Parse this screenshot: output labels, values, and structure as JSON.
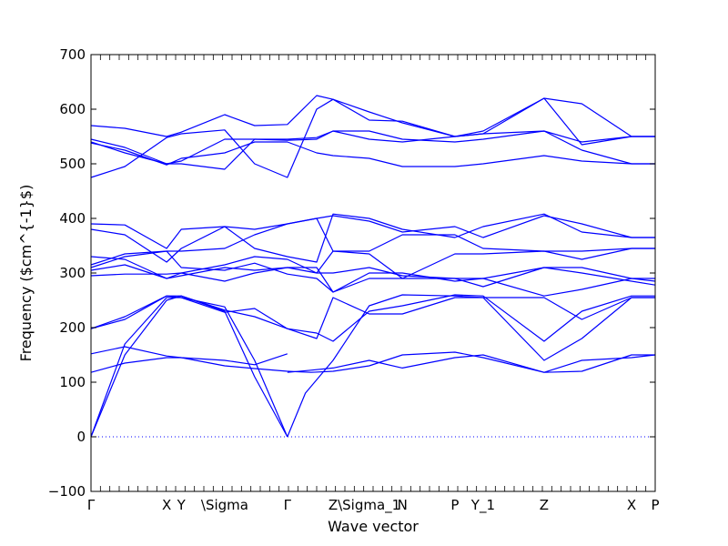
{
  "chart_data": {
    "type": "line",
    "title": "",
    "xlabel": "Wave vector",
    "ylabel": "Frequency ($cm^{-1}$)",
    "ylim": [
      -100,
      700
    ],
    "xlim": [
      0,
      1
    ],
    "yticks": [
      -100,
      0,
      100,
      200,
      300,
      400,
      500,
      600,
      700
    ],
    "grid": false,
    "line_color": "#0000ff",
    "zero_line_color": "#0000ff",
    "xticks": [
      {
        "label": "Γ",
        "pos": 0.0
      },
      {
        "label": "X",
        "pos": 0.134
      },
      {
        "label": "Y",
        "pos": 0.16
      },
      {
        "label": "\\Sigma",
        "pos": 0.237
      },
      {
        "label": "Γ",
        "pos": 0.348
      },
      {
        "label": "Z",
        "pos": 0.429
      },
      {
        "label": "\\Sigma_1",
        "pos": 0.493
      },
      {
        "label": "N",
        "pos": 0.552
      },
      {
        "label": "P",
        "pos": 0.645
      },
      {
        "label": "Y_1",
        "pos": 0.695
      },
      {
        "label": "Z",
        "pos": 0.803
      },
      {
        "label": "X",
        "pos": 0.958
      },
      {
        "label": "P",
        "pos": 1.0
      }
    ],
    "series": [
      {
        "x": [
          0,
          0.06,
          0.134,
          0.16,
          0.237,
          0.29,
          0.348
        ],
        "y": [
          0,
          150,
          250,
          258,
          230,
          110,
          0
        ]
      },
      {
        "x": [
          0,
          0.06,
          0.134,
          0.16,
          0.237,
          0.29,
          0.348
        ],
        "y": [
          0,
          170,
          255,
          255,
          238,
          140,
          0
        ]
      },
      {
        "x": [
          0.348,
          0.38,
          0.429,
          0.493,
          0.552,
          0.645,
          0.695,
          0.803,
          0.87,
          0.958,
          1.0
        ],
        "y": [
          0,
          80,
          140,
          240,
          260,
          258,
          255,
          140,
          180,
          255,
          255
        ]
      },
      {
        "x": [
          0,
          0.06,
          0.134,
          0.16,
          0.237,
          0.29,
          0.348
        ],
        "y": [
          118,
          135,
          145,
          145,
          130,
          125,
          120
        ]
      },
      {
        "x": [
          0,
          0.06,
          0.134,
          0.16,
          0.237,
          0.29,
          0.348
        ],
        "y": [
          152,
          165,
          148,
          145,
          140,
          132,
          152
        ]
      },
      {
        "x": [
          0.348,
          0.39,
          0.429,
          0.493,
          0.552,
          0.645,
          0.695,
          0.803,
          0.87,
          0.958,
          1.0
        ],
        "y": [
          120,
          118,
          120,
          130,
          150,
          155,
          145,
          118,
          120,
          150,
          150
        ]
      },
      {
        "x": [
          0.348,
          0.39,
          0.429,
          0.493,
          0.552,
          0.645,
          0.695,
          0.803,
          0.87,
          0.958,
          1.0
        ],
        "y": [
          118,
          122,
          126,
          140,
          126,
          145,
          150,
          118,
          140,
          145,
          150
        ]
      },
      {
        "x": [
          0,
          0.06,
          0.134,
          0.16,
          0.237,
          0.29,
          0.348,
          0.4,
          0.429,
          0.493,
          0.552,
          0.645,
          0.695,
          0.803,
          0.87,
          0.958,
          1.0
        ],
        "y": [
          198,
          215,
          258,
          258,
          232,
          220,
          198,
          190,
          175,
          230,
          240,
          260,
          258,
          175,
          230,
          258,
          258
        ]
      },
      {
        "x": [
          0,
          0.06,
          0.134,
          0.16,
          0.237,
          0.29,
          0.348,
          0.4,
          0.429,
          0.493,
          0.552,
          0.645,
          0.695,
          0.803,
          0.87,
          0.958,
          1.0
        ],
        "y": [
          198,
          220,
          258,
          255,
          228,
          235,
          198,
          180,
          255,
          225,
          225,
          255,
          255,
          255,
          215,
          255,
          255
        ]
      },
      {
        "x": [
          0,
          0.06,
          0.134,
          0.16,
          0.237,
          0.29,
          0.348,
          0.4,
          0.429,
          0.493,
          0.552,
          0.645,
          0.695,
          0.803,
          0.87,
          0.958,
          1.0
        ],
        "y": [
          295,
          298,
          298,
          300,
          285,
          300,
          310,
          310,
          265,
          300,
          300,
          285,
          290,
          258,
          270,
          290,
          285
        ]
      },
      {
        "x": [
          0,
          0.06,
          0.134,
          0.16,
          0.237,
          0.29,
          0.348,
          0.4,
          0.429,
          0.493,
          0.552,
          0.645,
          0.695,
          0.803,
          0.87,
          0.958,
          1.0
        ],
        "y": [
          305,
          315,
          290,
          295,
          310,
          305,
          310,
          300,
          300,
          310,
          295,
          290,
          275,
          310,
          300,
          285,
          278
        ]
      },
      {
        "x": [
          0,
          0.06,
          0.134,
          0.16,
          0.237,
          0.29,
          0.348,
          0.4,
          0.429,
          0.493,
          0.552,
          0.645,
          0.695,
          0.803,
          0.87,
          0.958,
          1.0
        ],
        "y": [
          310,
          330,
          340,
          310,
          305,
          318,
          298,
          290,
          265,
          290,
          290,
          290,
          290,
          310,
          310,
          290,
          290
        ]
      },
      {
        "x": [
          0,
          0.06,
          0.134,
          0.16,
          0.237,
          0.29,
          0.348,
          0.4,
          0.429,
          0.493,
          0.552,
          0.645,
          0.695,
          0.803,
          0.87,
          0.958,
          1.0
        ],
        "y": [
          330,
          325,
          290,
          300,
          315,
          330,
          325,
          300,
          340,
          340,
          370,
          370,
          345,
          340,
          340,
          345,
          345
        ]
      },
      {
        "x": [
          0,
          0.06,
          0.134,
          0.16,
          0.237,
          0.29,
          0.348,
          0.4,
          0.429,
          0.493,
          0.552,
          0.645,
          0.695,
          0.803,
          0.87,
          0.958,
          1.0
        ],
        "y": [
          315,
          335,
          340,
          340,
          345,
          370,
          390,
          400,
          340,
          335,
          290,
          335,
          335,
          340,
          325,
          345,
          345
        ]
      },
      {
        "x": [
          0,
          0.06,
          0.134,
          0.16,
          0.237,
          0.29,
          0.348,
          0.4,
          0.429,
          0.493,
          0.552,
          0.645,
          0.695,
          0.803,
          0.87,
          0.958,
          1.0
        ],
        "y": [
          380,
          370,
          320,
          345,
          385,
          380,
          390,
          400,
          405,
          395,
          375,
          385,
          365,
          405,
          390,
          365,
          365
        ]
      },
      {
        "x": [
          0,
          0.06,
          0.134,
          0.16,
          0.237,
          0.29,
          0.348,
          0.4,
          0.429,
          0.493,
          0.552,
          0.645,
          0.695,
          0.803,
          0.87,
          0.958,
          1.0
        ],
        "y": [
          390,
          388,
          345,
          380,
          385,
          345,
          330,
          320,
          408,
          400,
          380,
          365,
          385,
          408,
          375,
          365,
          365
        ]
      },
      {
        "x": [
          0,
          0.06,
          0.134,
          0.16,
          0.237,
          0.29,
          0.348,
          0.4,
          0.429,
          0.493,
          0.552,
          0.645,
          0.695,
          0.803,
          0.87,
          0.958,
          1.0
        ],
        "y": [
          475,
          495,
          548,
          555,
          562,
          500,
          475,
          600,
          618,
          595,
          575,
          550,
          555,
          620,
          535,
          550,
          550
        ]
      },
      {
        "x": [
          0,
          0.06,
          0.134,
          0.16,
          0.237,
          0.29,
          0.348,
          0.4,
          0.429,
          0.493,
          0.552,
          0.645,
          0.695,
          0.803,
          0.87,
          0.958,
          1.0
        ],
        "y": [
          538,
          525,
          498,
          510,
          520,
          540,
          540,
          520,
          515,
          510,
          495,
          495,
          500,
          515,
          505,
          500,
          500
        ]
      },
      {
        "x": [
          0,
          0.06,
          0.134,
          0.16,
          0.237,
          0.29,
          0.348,
          0.4,
          0.429,
          0.493,
          0.552,
          0.645,
          0.695,
          0.803,
          0.87,
          0.958,
          1.0
        ],
        "y": [
          545,
          530,
          500,
          500,
          490,
          545,
          545,
          548,
          560,
          560,
          545,
          540,
          545,
          560,
          525,
          500,
          500
        ]
      },
      {
        "x": [
          0,
          0.06,
          0.134,
          0.16,
          0.237,
          0.29,
          0.348,
          0.4,
          0.429,
          0.493,
          0.552,
          0.645,
          0.695,
          0.803,
          0.87,
          0.958,
          1.0
        ],
        "y": [
          540,
          520,
          500,
          505,
          545,
          545,
          543,
          545,
          560,
          545,
          540,
          550,
          555,
          560,
          540,
          550,
          550
        ]
      },
      {
        "x": [
          0,
          0.06,
          0.134,
          0.16,
          0.237,
          0.29,
          0.348,
          0.4,
          0.429,
          0.493,
          0.552,
          0.645,
          0.695,
          0.803,
          0.87,
          0.958,
          1.0
        ],
        "y": [
          570,
          565,
          550,
          558,
          590,
          570,
          572,
          625,
          618,
          580,
          578,
          550,
          560,
          620,
          610,
          550,
          550
        ]
      }
    ]
  }
}
